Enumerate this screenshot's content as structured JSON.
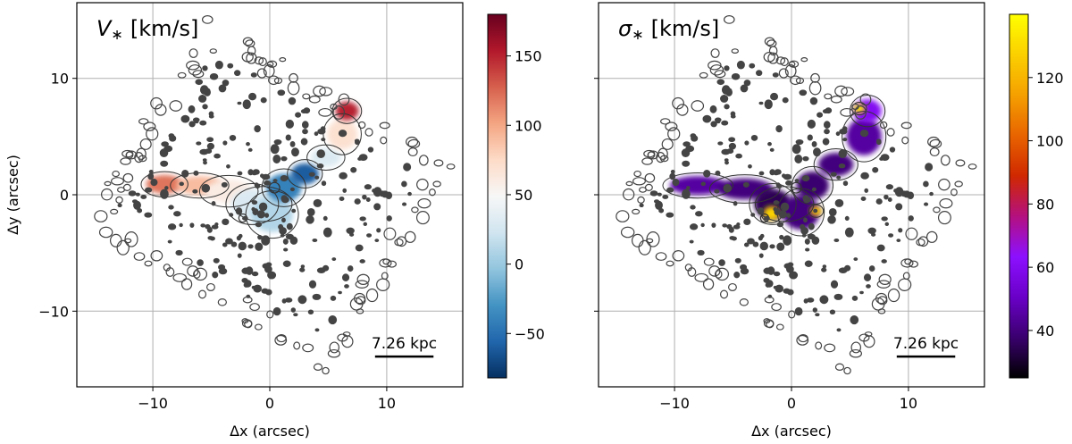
{
  "chart_data": [
    {
      "type": "heatmap",
      "title": "V∗ [km/s]",
      "title_symbol": "V",
      "title_sub": "∗",
      "title_unit": "[km/s]",
      "xlabel": "Δx (arcsec)",
      "ylabel": "Δy (arcsec)",
      "xlim": [
        -16.5,
        16.5
      ],
      "ylim": [
        -16.5,
        16.5
      ],
      "xticks": [
        -10,
        0,
        10
      ],
      "xtick_labels": [
        "−10",
        "0",
        "10"
      ],
      "yticks": [
        -10,
        0,
        10
      ],
      "ytick_labels": [
        "−10",
        "0",
        "10"
      ],
      "grid": true,
      "colormap": "RdBu_r",
      "colorbar": {
        "min": -82,
        "max": 180,
        "ticks": [
          -50,
          0,
          50,
          100,
          150
        ],
        "tick_labels": [
          "−50",
          "0",
          "50",
          "100",
          "150"
        ],
        "colors": [
          "#053061",
          "#2166ac",
          "#4393c3",
          "#92c5de",
          "#d1e5f0",
          "#f7f7f7",
          "#fddbc7",
          "#f4a582",
          "#d6604d",
          "#b2182b",
          "#67001f"
        ]
      },
      "scale_bar": {
        "label": "7.26 kpc",
        "x_start": 9.0,
        "x_end": 14.0,
        "y": -13.9
      },
      "emission_blobs": [
        {
          "x": -9.0,
          "y": 0.9,
          "rx": 1.6,
          "ry": 0.8,
          "value": 120
        },
        {
          "x": -6.0,
          "y": 0.8,
          "rx": 2.0,
          "ry": 0.8,
          "value": 90
        },
        {
          "x": -3.5,
          "y": 0.3,
          "rx": 2.0,
          "ry": 1.0,
          "value": 60
        },
        {
          "x": -1.5,
          "y": -0.8,
          "rx": 1.8,
          "ry": 1.3,
          "value": 30
        },
        {
          "x": 0.2,
          "y": -1.7,
          "rx": 1.8,
          "ry": 1.5,
          "value": 10
        },
        {
          "x": 1.2,
          "y": 0.6,
          "rx": 1.5,
          "ry": 1.2,
          "value": -40
        },
        {
          "x": 3.0,
          "y": 1.8,
          "rx": 1.2,
          "ry": 0.9,
          "value": -60
        },
        {
          "x": 4.8,
          "y": 3.2,
          "rx": 1.3,
          "ry": 0.8,
          "value": 30
        },
        {
          "x": 6.2,
          "y": 5.2,
          "rx": 1.3,
          "ry": 1.3,
          "value": 70
        },
        {
          "x": 6.6,
          "y": 7.2,
          "rx": 1.0,
          "ry": 0.8,
          "value": 150
        }
      ]
    },
    {
      "type": "heatmap",
      "title": "σ∗ [km/s]",
      "title_symbol": "σ",
      "title_sub": "∗",
      "title_unit": "[km/s]",
      "xlabel": "Δx (arcsec)",
      "ylabel": "",
      "xlim": [
        -16.5,
        16.5
      ],
      "ylim": [
        -16.5,
        16.5
      ],
      "xticks": [
        -10,
        0,
        10
      ],
      "xtick_labels": [
        "−10",
        "0",
        "10"
      ],
      "yticks": [
        -10,
        0,
        10
      ],
      "ytick_labels": [],
      "grid": true,
      "colormap": "gnuplot",
      "colorbar": {
        "min": 25,
        "max": 140,
        "ticks": [
          40,
          60,
          80,
          100,
          120
        ],
        "tick_labels": [
          "40",
          "60",
          "80",
          "100",
          "120"
        ],
        "colors": [
          "#000000",
          "#3a006e",
          "#6a00c8",
          "#8c10ff",
          "#b4107f",
          "#d02800",
          "#e86400",
          "#f5a000",
          "#fbd000",
          "#ffff00"
        ]
      },
      "scale_bar": {
        "label": "7.26 kpc",
        "x_start": 9.0,
        "x_end": 14.0,
        "y": -13.9
      },
      "emission_blobs": [
        {
          "x": -8.0,
          "y": 0.8,
          "rx": 2.4,
          "ry": 0.8,
          "value": 45
        },
        {
          "x": -4.0,
          "y": 0.5,
          "rx": 2.4,
          "ry": 0.9,
          "value": 40
        },
        {
          "x": -1.6,
          "y": -0.8,
          "rx": 1.6,
          "ry": 1.3,
          "value": 35
        },
        {
          "x": -1.7,
          "y": -1.6,
          "rx": 0.7,
          "ry": 0.6,
          "value": 128
        },
        {
          "x": 0.8,
          "y": -1.5,
          "rx": 1.6,
          "ry": 1.5,
          "value": 40
        },
        {
          "x": 1.8,
          "y": 0.8,
          "rx": 1.4,
          "ry": 1.2,
          "value": 38
        },
        {
          "x": 3.8,
          "y": 2.6,
          "rx": 1.5,
          "ry": 1.0,
          "value": 40
        },
        {
          "x": 6.2,
          "y": 5.0,
          "rx": 1.5,
          "ry": 1.6,
          "value": 45
        },
        {
          "x": 6.5,
          "y": 7.2,
          "rx": 1.2,
          "ry": 1.0,
          "value": 60
        },
        {
          "x": 5.8,
          "y": 7.4,
          "rx": 0.5,
          "ry": 0.4,
          "value": 135
        },
        {
          "x": 2.1,
          "y": -1.4,
          "rx": 0.5,
          "ry": 0.4,
          "value": 125
        }
      ]
    }
  ]
}
